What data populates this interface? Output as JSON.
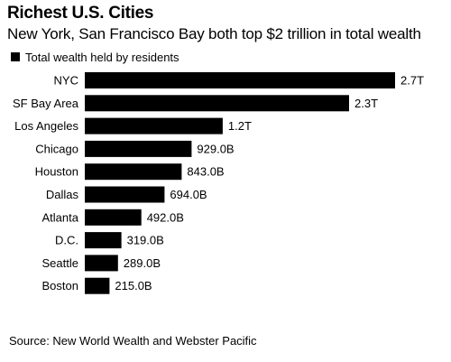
{
  "title": "Richest U.S. Cities",
  "subtitle": "New York, San Francisco Bay both top $2 trillion in total wealth",
  "source": "Source: New World Wealth and Webster Pacific",
  "colors": {
    "bar": "#000000",
    "text": "#000000",
    "background": "#ffffff"
  },
  "chart_data": {
    "type": "bar",
    "orientation": "horizontal",
    "categories": [
      "NYC",
      "SF Bay Area",
      "Los Angeles",
      "Chicago",
      "Houston",
      "Dallas",
      "Atlanta",
      "D.C.",
      "Seattle",
      "Boston"
    ],
    "series": [
      {
        "name": "Total wealth held by residents",
        "values": [
          2700,
          2300,
          1200,
          929,
          843,
          694,
          492,
          319,
          289,
          215
        ],
        "value_labels": [
          "2.7T",
          "2.3T",
          "1.2T",
          "929.0B",
          "843.0B",
          "694.0B",
          "492.0B",
          "319.0B",
          "289.0B",
          "215.0B"
        ]
      }
    ],
    "unit": "billions of US dollars",
    "xlim": [
      0,
      2700
    ],
    "grid": false,
    "legend": "top-left",
    "value_labels_visible": true,
    "axis_labels_visible": false
  }
}
